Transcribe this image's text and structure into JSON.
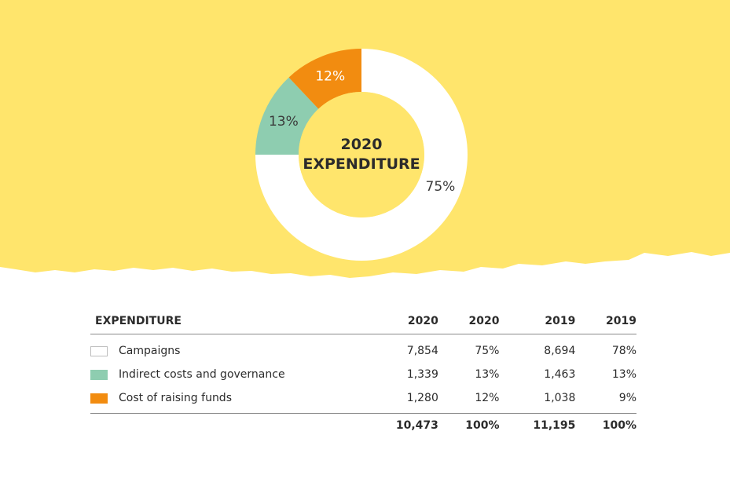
{
  "colors": {
    "background": "#ffe56c",
    "campaigns": "#ffffff",
    "indirect": "#8ecdb0",
    "fundraising": "#f28c10"
  },
  "chart_data": {
    "type": "pie",
    "variant": "donut",
    "title": "2020 EXPENDITURE",
    "title_lines": [
      "2020",
      "EXPENDITURE"
    ],
    "slices": [
      {
        "name": "Campaigns",
        "value": 75,
        "label": "75%",
        "color": "#ffffff"
      },
      {
        "name": "Indirect costs and governance",
        "value": 13,
        "label": "13%",
        "color": "#8ecdb0"
      },
      {
        "name": "Cost of raising funds",
        "value": 12,
        "label": "12%",
        "color": "#f28c10"
      }
    ]
  },
  "table": {
    "headers": [
      "EXPENDITURE",
      "2020",
      "2020",
      "2019",
      "2019"
    ],
    "rows": [
      {
        "label": "Campaigns",
        "swatch": "#ffffff",
        "cells": [
          "7,854",
          "75%",
          "8,694",
          "78%"
        ]
      },
      {
        "label": "Indirect costs and governance",
        "swatch": "#8ecdb0",
        "cells": [
          "1,339",
          "13%",
          "1,463",
          "13%"
        ]
      },
      {
        "label": "Cost of raising funds",
        "swatch": "#f28c10",
        "cells": [
          "1,280",
          "12%",
          "1,038",
          "9%"
        ]
      }
    ],
    "totals": [
      "10,473",
      "100%",
      "11,195",
      "100%"
    ]
  }
}
